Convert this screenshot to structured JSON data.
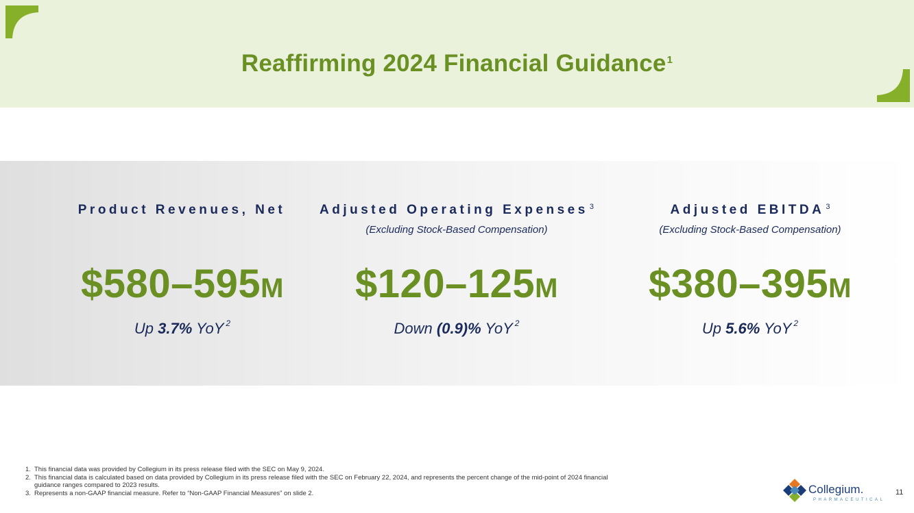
{
  "header": {
    "title": "Reaffirming 2024 Financial Guidance",
    "title_sup": "1",
    "accent_color": "#6a8f23",
    "background_color": "#eaf2dc"
  },
  "metrics": [
    {
      "label": "Product Revenues, Net",
      "label_sup": "",
      "sublabel": "",
      "value": "$580–595",
      "unit": "M",
      "change_prefix": "Up ",
      "change_value": "3.7%",
      "change_suffix": " YoY",
      "change_sup": "2"
    },
    {
      "label": "Adjusted Operating Expenses",
      "label_sup": "3",
      "sublabel": "(Excluding Stock-Based Compensation)",
      "value": "$120–125",
      "unit": "M",
      "change_prefix": "Down ",
      "change_value": "(0.9)%",
      "change_suffix": " YoY",
      "change_sup": "2"
    },
    {
      "label": "Adjusted EBITDA",
      "label_sup": "3",
      "sublabel": "(Excluding Stock-Based Compensation)",
      "value": "$380–395",
      "unit": "M",
      "change_prefix": "Up ",
      "change_value": "5.6%",
      "change_suffix": " YoY",
      "change_sup": "2"
    }
  ],
  "footnotes": [
    {
      "num": "1.",
      "text": "This financial data was provided by Collegium in its press release filed with the SEC on May 9, 2024."
    },
    {
      "num": "2.",
      "text": "This financial data is calculated based on data provided by Collegium in its press release filed with the SEC on February 22, 2024, and represents the percent change of the mid-point of 2024 financial guidance ranges compared to 2023 results."
    },
    {
      "num": "3.",
      "text": "Represents a non-GAAP financial measure. Refer to “Non-GAAP Financial Measures” on slide 2."
    }
  ],
  "logo": {
    "name": "Collegium.",
    "tagline": "PHARMACEUTICAL",
    "icon": "collegium-logo-icon"
  },
  "page_number": "11",
  "colors": {
    "navy": "#1a2a5a",
    "green": "#6a8f23",
    "corner_green": "#86b02a"
  }
}
